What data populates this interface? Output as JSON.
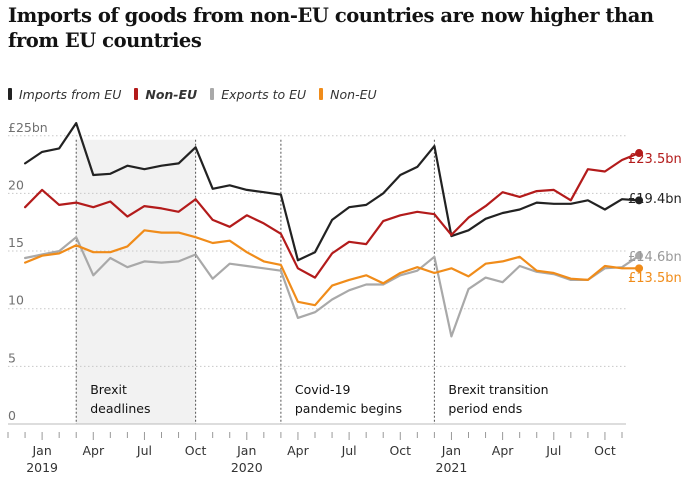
{
  "title": "Imports of goods from non-EU countries are now higher than from EU countries",
  "legend": [
    {
      "label": "Imports from EU",
      "color": "#222222",
      "bold": false
    },
    {
      "label": "Non-EU",
      "color": "#b31b1b",
      "bold": true
    },
    {
      "label": "Exports to EU",
      "color": "#a9a9a9",
      "bold": false
    },
    {
      "label": "Non-EU",
      "color": "#f08c1a",
      "bold": false
    }
  ],
  "chart_data": {
    "type": "line",
    "y_unit_label": "£25bn",
    "yticks": [
      0,
      5,
      10,
      15,
      20,
      25
    ],
    "ytick_labels": [
      "0",
      "5",
      "10",
      "15",
      "20",
      "£25bn"
    ],
    "ylim": [
      0,
      25
    ],
    "x_start": "2018-11",
    "x_end": "2021-11",
    "xticks": [
      {
        "date": "2019-01",
        "label": "Jan",
        "year": "2019"
      },
      {
        "date": "2019-04",
        "label": "Apr",
        "year": ""
      },
      {
        "date": "2019-07",
        "label": "Jul",
        "year": ""
      },
      {
        "date": "2019-10",
        "label": "Oct",
        "year": ""
      },
      {
        "date": "2020-01",
        "label": "Jan",
        "year": "2020"
      },
      {
        "date": "2020-04",
        "label": "Apr",
        "year": ""
      },
      {
        "date": "2020-07",
        "label": "Jul",
        "year": ""
      },
      {
        "date": "2020-10",
        "label": "Oct",
        "year": ""
      },
      {
        "date": "2021-01",
        "label": "Jan",
        "year": "2021"
      },
      {
        "date": "2021-04",
        "label": "Apr",
        "year": ""
      },
      {
        "date": "2021-07",
        "label": "Jul",
        "year": ""
      },
      {
        "date": "2021-10",
        "label": "Oct",
        "year": ""
      }
    ],
    "shaded_period": {
      "start": "2019-03",
      "end": "2019-10"
    },
    "annotations": [
      {
        "date": "2019-03",
        "lines": [
          "Brexit",
          "deadlines"
        ]
      },
      {
        "date": "2019-10",
        "lines": [],
        "line_only": true
      },
      {
        "date": "2020-03",
        "lines": [
          "Covid-19",
          "pandemic begins"
        ]
      },
      {
        "date": "2020-12",
        "lines": [
          "Brexit transition",
          "period ends"
        ]
      }
    ],
    "series": [
      {
        "name": "Imports from EU",
        "color": "#222222",
        "end_label": "£19.4bn",
        "start": "2018-12",
        "values": [
          22.6,
          23.6,
          23.9,
          26.1,
          21.6,
          21.7,
          22.4,
          22.1,
          22.4,
          22.6,
          24.0,
          20.4,
          20.7,
          20.3,
          20.1,
          19.9,
          14.2,
          14.9,
          17.7,
          18.8,
          19.0,
          20.0,
          21.6,
          22.3,
          24.1,
          16.3,
          16.8,
          17.8,
          18.3,
          18.6,
          19.2,
          19.1,
          19.1,
          19.4,
          18.6,
          19.5,
          19.4
        ]
      },
      {
        "name": "Non-EU",
        "color": "#b31b1b",
        "end_label": "£23.5bn",
        "start": "2018-12",
        "values": [
          18.8,
          20.3,
          19.0,
          19.2,
          18.8,
          19.3,
          18.0,
          18.9,
          18.7,
          18.4,
          19.5,
          17.7,
          17.1,
          18.1,
          17.4,
          16.5,
          13.5,
          12.7,
          14.8,
          15.8,
          15.6,
          17.6,
          18.1,
          18.4,
          18.2,
          16.4,
          17.9,
          18.9,
          20.1,
          19.7,
          20.2,
          20.3,
          19.4,
          22.1,
          21.9,
          22.9,
          23.5
        ]
      },
      {
        "name": "Exports to EU",
        "color": "#a9a9a9",
        "end_label": "£14.6bn",
        "start": "2018-12",
        "values": [
          14.4,
          14.7,
          15.0,
          16.2,
          12.9,
          14.4,
          13.6,
          14.1,
          14.0,
          14.1,
          14.7,
          12.6,
          13.9,
          13.7,
          13.5,
          13.3,
          9.2,
          9.7,
          10.8,
          11.6,
          12.1,
          12.1,
          12.9,
          13.3,
          14.5,
          7.6,
          11.7,
          12.7,
          12.3,
          13.7,
          13.2,
          13.0,
          12.5,
          12.5,
          13.5,
          13.6,
          14.6
        ]
      },
      {
        "name": "Non-EU",
        "color": "#f08c1a",
        "end_label": "£13.5bn",
        "start": "2018-12",
        "values": [
          14.0,
          14.6,
          14.8,
          15.5,
          14.9,
          14.9,
          15.4,
          16.8,
          16.6,
          16.6,
          16.2,
          15.7,
          15.9,
          14.9,
          14.1,
          13.8,
          10.6,
          10.3,
          12.0,
          12.5,
          12.9,
          12.2,
          13.1,
          13.6,
          13.1,
          13.5,
          12.8,
          13.9,
          14.1,
          14.5,
          13.3,
          13.1,
          12.6,
          12.5,
          13.7,
          13.5,
          13.5
        ]
      }
    ]
  }
}
